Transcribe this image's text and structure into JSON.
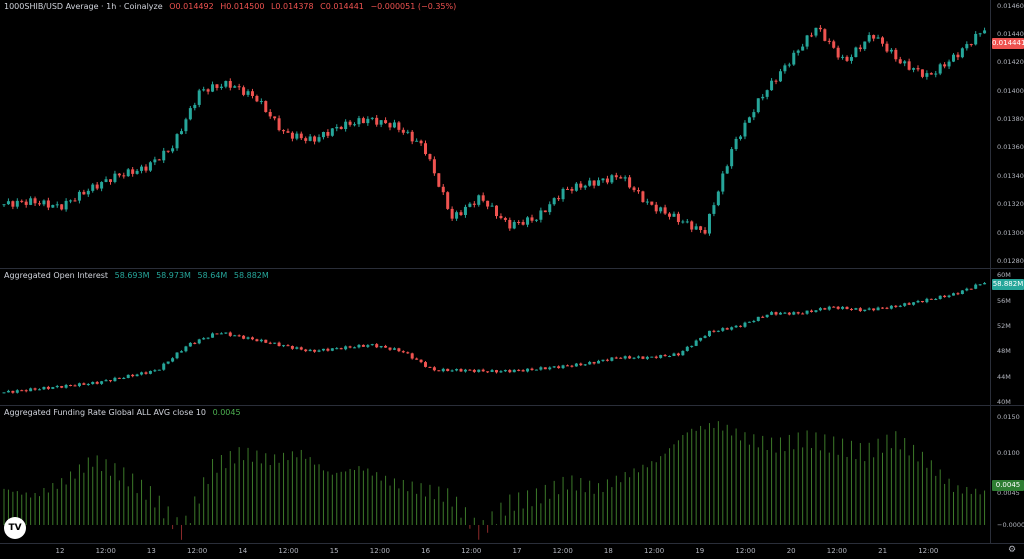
{
  "colors": {
    "up": "#26a69a",
    "down": "#ef5350",
    "funding": "#3d7a2a",
    "legend_green": "#26a69a",
    "legend_red": "#ef5350"
  },
  "price_pane": {
    "title": "1000SHIB/USD Average · 1h · Coinalyze",
    "ohlc": {
      "o": "O0.014492",
      "h": "H0.014500",
      "l": "L0.014378",
      "c": "C0.014441",
      "chg": "−0.000051 (−0.35%)"
    },
    "ticks": [
      "0.014600",
      "0.014400",
      "0.014200",
      "0.014000",
      "0.013800",
      "0.013600",
      "0.013400",
      "0.013200",
      "0.013000",
      "0.012800"
    ],
    "last": "0.014441",
    "range": [
      0.01275,
      0.01464
    ]
  },
  "oi_pane": {
    "title": "Aggregated Open Interest",
    "values": {
      "o": "58.693M",
      "h": "58.973M",
      "l": "58.64M",
      "c": "58.882M"
    },
    "ticks": [
      "60M",
      "56M",
      "52M",
      "48M",
      "44M",
      "40M"
    ],
    "last": "58.882M",
    "range": [
      39.5,
      61
    ]
  },
  "funding_pane": {
    "title": "Aggregated Funding Rate Global ALL AVG close 10",
    "value": "0.0045",
    "ticks": [
      "0.0150",
      "0.0100",
      "0.0045",
      "−0.0000"
    ],
    "last": "0.0045",
    "range": [
      -0.0025,
      0.0165
    ]
  },
  "time_axis": [
    "12",
    "12:00",
    "13",
    "12:00",
    "14",
    "12:00",
    "15",
    "12:00",
    "16",
    "12:00",
    "17",
    "12:00",
    "18",
    "12:00",
    "19",
    "12:00",
    "20",
    "12:00",
    "21",
    "12:00"
  ],
  "logo_text": "TV",
  "chart_data": [
    {
      "type": "candlestick",
      "title": "1000SHIB/USD Average · 1h · Coinalyze",
      "xlabel": "",
      "ylabel": "",
      "x": [
        "12",
        "13",
        "14",
        "15",
        "16",
        "17",
        "18",
        "19",
        "20",
        "21"
      ],
      "close_approx": [
        0.0132,
        0.01335,
        0.014,
        0.01375,
        0.0131,
        0.01325,
        0.0133,
        0.0138,
        0.0144,
        0.01444
      ],
      "ylim": [
        0.01275,
        0.01464
      ]
    },
    {
      "type": "candlestick",
      "title": "Aggregated Open Interest",
      "ylim": [
        40,
        60
      ],
      "x": [
        "12",
        "13",
        "14",
        "15",
        "16",
        "17",
        "18",
        "19",
        "20",
        "21"
      ],
      "close_approx": [
        42,
        43,
        50,
        48,
        45,
        45,
        47,
        51,
        54,
        58.9
      ]
    },
    {
      "type": "bar",
      "title": "Aggregated Funding Rate Global ALL AVG close 10",
      "ylim": [
        -0.0025,
        0.0165
      ],
      "x": [
        "12",
        "13",
        "14",
        "15",
        "16",
        "17",
        "18",
        "19",
        "20",
        "21"
      ],
      "values_approx": [
        0.005,
        0.008,
        0.009,
        0.01,
        0.006,
        0.003,
        0.006,
        0.014,
        0.012,
        0.0045
      ]
    }
  ]
}
